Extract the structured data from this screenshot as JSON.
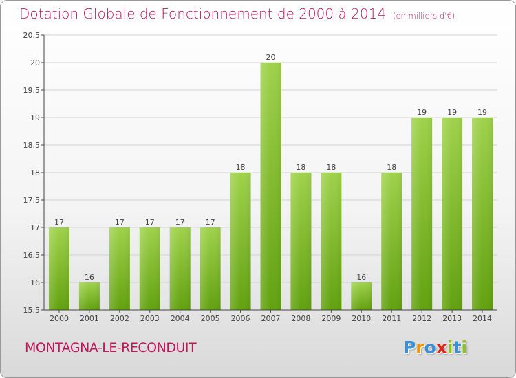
{
  "header": {
    "title": "Dotation Globale de Fonctionnement de 2000 à 2014",
    "unit": "(en milliers d'€)"
  },
  "footer": {
    "commune": "MONTAGNA-LE-RECONDUIT",
    "logo_text": "Proxiti",
    "logo_colors": [
      "#3a8fd6",
      "#f39200",
      "#3a8fd6",
      "#e2231a",
      "#8dc21f",
      "#3a8fd6",
      "#8dc21f"
    ]
  },
  "colors": {
    "title": "#c2185b",
    "bar_light": "#9fd24b",
    "bar_dark": "#62a10f",
    "grid": "#d0d0d0"
  },
  "chart_data": {
    "type": "bar",
    "title": "Dotation Globale de Fonctionnement de 2000 à 2014",
    "subtitle": "(en milliers d'€)",
    "categories": [
      "2000",
      "2001",
      "2002",
      "2003",
      "2004",
      "2005",
      "2006",
      "2007",
      "2008",
      "2009",
      "2010",
      "2011",
      "2012",
      "2013",
      "2014"
    ],
    "values": [
      17,
      16,
      17,
      17,
      17,
      17,
      18,
      20,
      18,
      18,
      16,
      18,
      19,
      19,
      19
    ],
    "data_labels": [
      "17",
      "16",
      "17",
      "17",
      "17",
      "17",
      "18",
      "20",
      "18",
      "18",
      "16",
      "18",
      "19",
      "19",
      "19"
    ],
    "yticks": [
      "15.5",
      "16",
      "16.5",
      "17",
      "17.5",
      "18",
      "18.5",
      "19",
      "19.5",
      "20",
      "20.5"
    ],
    "ylim": [
      15.5,
      20.5
    ],
    "grid": true,
    "legend": "none"
  }
}
